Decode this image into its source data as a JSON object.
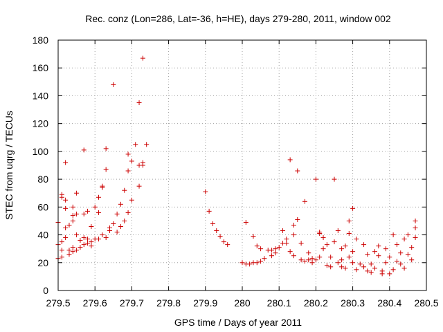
{
  "chart_data": {
    "type": "scatter",
    "title": "Rec. conz (Lon=286, Lat=-36, h=HE), days 279-280, 2011, window 002",
    "xlabel": "GPS time / Days of year 2011",
    "ylabel": "STEC from uqrg / TECUs",
    "xlim": [
      279.5,
      280.5
    ],
    "ylim": [
      0,
      180
    ],
    "xticks": [
      279.5,
      279.6,
      279.7,
      279.8,
      279.9,
      280,
      280.1,
      280.2,
      280.3,
      280.4,
      280.5
    ],
    "xtick_labels": [
      "279.5",
      "279.6",
      "279.7",
      "279.8",
      "279.9",
      "280",
      "280.1",
      "280.2",
      "280.3",
      "280.4",
      "280.5"
    ],
    "yticks": [
      0,
      20,
      40,
      60,
      80,
      100,
      120,
      140,
      160,
      180
    ],
    "ytick_labels": [
      "0",
      "20",
      "40",
      "60",
      "80",
      "100",
      "120",
      "140",
      "160",
      "180"
    ],
    "grid": true,
    "marker": "+",
    "color": "#cc0000",
    "series": [
      {
        "points": [
          [
            279.5,
            49
          ],
          [
            279.5,
            33
          ],
          [
            279.5,
            23
          ],
          [
            279.51,
            29
          ],
          [
            279.51,
            35
          ],
          [
            279.51,
            69
          ],
          [
            279.51,
            67
          ],
          [
            279.51,
            24
          ],
          [
            279.52,
            38
          ],
          [
            279.52,
            92
          ],
          [
            279.52,
            45
          ],
          [
            279.52,
            59
          ],
          [
            279.52,
            65
          ],
          [
            279.53,
            29
          ],
          [
            279.53,
            26
          ],
          [
            279.53,
            47
          ],
          [
            279.54,
            60
          ],
          [
            279.54,
            50
          ],
          [
            279.54,
            54
          ],
          [
            279.54,
            31
          ],
          [
            279.54,
            28
          ],
          [
            279.55,
            29
          ],
          [
            279.55,
            55
          ],
          [
            279.55,
            70
          ],
          [
            279.55,
            40
          ],
          [
            279.56,
            31
          ],
          [
            279.56,
            36
          ],
          [
            279.57,
            101
          ],
          [
            279.57,
            55
          ],
          [
            279.57,
            38
          ],
          [
            279.57,
            33
          ],
          [
            279.58,
            34
          ],
          [
            279.58,
            37
          ],
          [
            279.58,
            57
          ],
          [
            279.59,
            32
          ],
          [
            279.59,
            35
          ],
          [
            279.59,
            46
          ],
          [
            279.6,
            60
          ],
          [
            279.6,
            37
          ],
          [
            279.61,
            56
          ],
          [
            279.61,
            67
          ],
          [
            279.61,
            37
          ],
          [
            279.62,
            74
          ],
          [
            279.62,
            75
          ],
          [
            279.62,
            40
          ],
          [
            279.63,
            38
          ],
          [
            279.63,
            102
          ],
          [
            279.63,
            87
          ],
          [
            279.64,
            43
          ],
          [
            279.64,
            45
          ],
          [
            279.65,
            148
          ],
          [
            279.65,
            48
          ],
          [
            279.66,
            42
          ],
          [
            279.66,
            55
          ],
          [
            279.67,
            46
          ],
          [
            279.67,
            62
          ],
          [
            279.68,
            50
          ],
          [
            279.68,
            72
          ],
          [
            279.69,
            56
          ],
          [
            279.69,
            98
          ],
          [
            279.69,
            86
          ],
          [
            279.7,
            65
          ],
          [
            279.7,
            93
          ],
          [
            279.71,
            105
          ],
          [
            279.72,
            135
          ],
          [
            279.72,
            75
          ],
          [
            279.72,
            90
          ],
          [
            279.73,
            90
          ],
          [
            279.73,
            92
          ],
          [
            279.73,
            167
          ],
          [
            279.74,
            105
          ],
          [
            279.9,
            71
          ],
          [
            279.91,
            57
          ],
          [
            279.92,
            48
          ],
          [
            279.93,
            43
          ],
          [
            279.94,
            39
          ],
          [
            279.95,
            35
          ],
          [
            279.96,
            33
          ],
          [
            280.0,
            20
          ],
          [
            280.01,
            19
          ],
          [
            280.01,
            49
          ],
          [
            280.02,
            19
          ],
          [
            280.03,
            39
          ],
          [
            280.03,
            20
          ],
          [
            280.04,
            20
          ],
          [
            280.04,
            32
          ],
          [
            280.05,
            21
          ],
          [
            280.05,
            30
          ],
          [
            280.06,
            23
          ],
          [
            280.07,
            29
          ],
          [
            280.08,
            25
          ],
          [
            280.08,
            29
          ],
          [
            280.09,
            30
          ],
          [
            280.09,
            27
          ],
          [
            280.1,
            31
          ],
          [
            280.11,
            43
          ],
          [
            280.11,
            34
          ],
          [
            280.12,
            34
          ],
          [
            280.12,
            37
          ],
          [
            280.13,
            28
          ],
          [
            280.13,
            94
          ],
          [
            280.14,
            47
          ],
          [
            280.14,
            25
          ],
          [
            280.14,
            40
          ],
          [
            280.15,
            86
          ],
          [
            280.15,
            51
          ],
          [
            280.16,
            22
          ],
          [
            280.16,
            34
          ],
          [
            280.17,
            64
          ],
          [
            280.17,
            21
          ],
          [
            280.18,
            27
          ],
          [
            280.18,
            22
          ],
          [
            280.19,
            23
          ],
          [
            280.19,
            20
          ],
          [
            280.2,
            80
          ],
          [
            280.2,
            22
          ],
          [
            280.21,
            24
          ],
          [
            280.21,
            42
          ],
          [
            280.21,
            41
          ],
          [
            280.22,
            38
          ],
          [
            280.22,
            30
          ],
          [
            280.23,
            33
          ],
          [
            280.23,
            18
          ],
          [
            280.24,
            17
          ],
          [
            280.24,
            24
          ],
          [
            280.25,
            80
          ],
          [
            280.25,
            35
          ],
          [
            280.26,
            43
          ],
          [
            280.26,
            20
          ],
          [
            280.27,
            30
          ],
          [
            280.27,
            22
          ],
          [
            280.27,
            17
          ],
          [
            280.28,
            32
          ],
          [
            280.28,
            16
          ],
          [
            280.29,
            50
          ],
          [
            280.29,
            24
          ],
          [
            280.29,
            41
          ],
          [
            280.3,
            59
          ],
          [
            280.3,
            28
          ],
          [
            280.3,
            20
          ],
          [
            280.31,
            37
          ],
          [
            280.31,
            15
          ],
          [
            280.32,
            19
          ],
          [
            280.33,
            17
          ],
          [
            280.33,
            33
          ],
          [
            280.34,
            14
          ],
          [
            280.34,
            26
          ],
          [
            280.35,
            19
          ],
          [
            280.35,
            13
          ],
          [
            280.36,
            28
          ],
          [
            280.36,
            16
          ],
          [
            280.37,
            25
          ],
          [
            280.37,
            32
          ],
          [
            280.38,
            12
          ],
          [
            280.38,
            14
          ],
          [
            280.39,
            20
          ],
          [
            280.39,
            30
          ],
          [
            280.4,
            24
          ],
          [
            280.4,
            12
          ],
          [
            280.41,
            15
          ],
          [
            280.41,
            40
          ],
          [
            280.42,
            33
          ],
          [
            280.42,
            21
          ],
          [
            280.43,
            19
          ],
          [
            280.43,
            27
          ],
          [
            280.44,
            16
          ],
          [
            280.44,
            37
          ],
          [
            280.45,
            26
          ],
          [
            280.45,
            40
          ],
          [
            280.46,
            31
          ],
          [
            280.46,
            22
          ],
          [
            280.47,
            38
          ],
          [
            280.47,
            50
          ],
          [
            280.47,
            45
          ]
        ]
      }
    ]
  }
}
